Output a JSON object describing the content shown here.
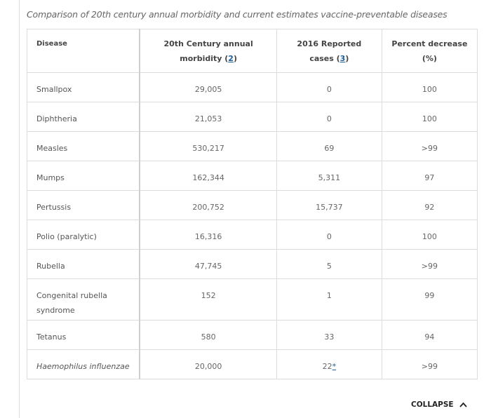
{
  "caption": "Comparison of 20th century annual morbidity and current estimates vaccine-preventable diseases",
  "table": {
    "header": [
      {
        "text": "Disease"
      },
      {
        "text": "20th Century annual morbidity (",
        "ref": "2",
        "after": ")"
      },
      {
        "text": "2016 Reported cases (",
        "ref": "3",
        "after": ")"
      },
      {
        "text": "Percent decrease (%)"
      }
    ],
    "rows": [
      [
        "Smallpox",
        "29,005",
        "0",
        "100"
      ],
      [
        "Diphtheria",
        "21,053",
        "0",
        "100"
      ],
      [
        "Measles",
        "530,217",
        "69",
        ">99"
      ],
      [
        "Mumps",
        "162,344",
        "5,311",
        "97"
      ],
      [
        "Pertussis",
        "200,752",
        "15,737",
        "92"
      ],
      [
        "Polio (paralytic)",
        "16,316",
        "0",
        "100"
      ],
      [
        "Rubella",
        "47,745",
        "5",
        ">99"
      ],
      [
        "Congenital rubella syndrome",
        "152",
        "1",
        "99"
      ],
      [
        "Tetanus",
        "580",
        "33",
        "94"
      ],
      [
        "Haemophilus influenzae",
        "20,000",
        {
          "text": "22",
          "ref": "*"
        },
        ">99"
      ]
    ]
  },
  "footer": {
    "collapse": "COLLAPSE"
  }
}
